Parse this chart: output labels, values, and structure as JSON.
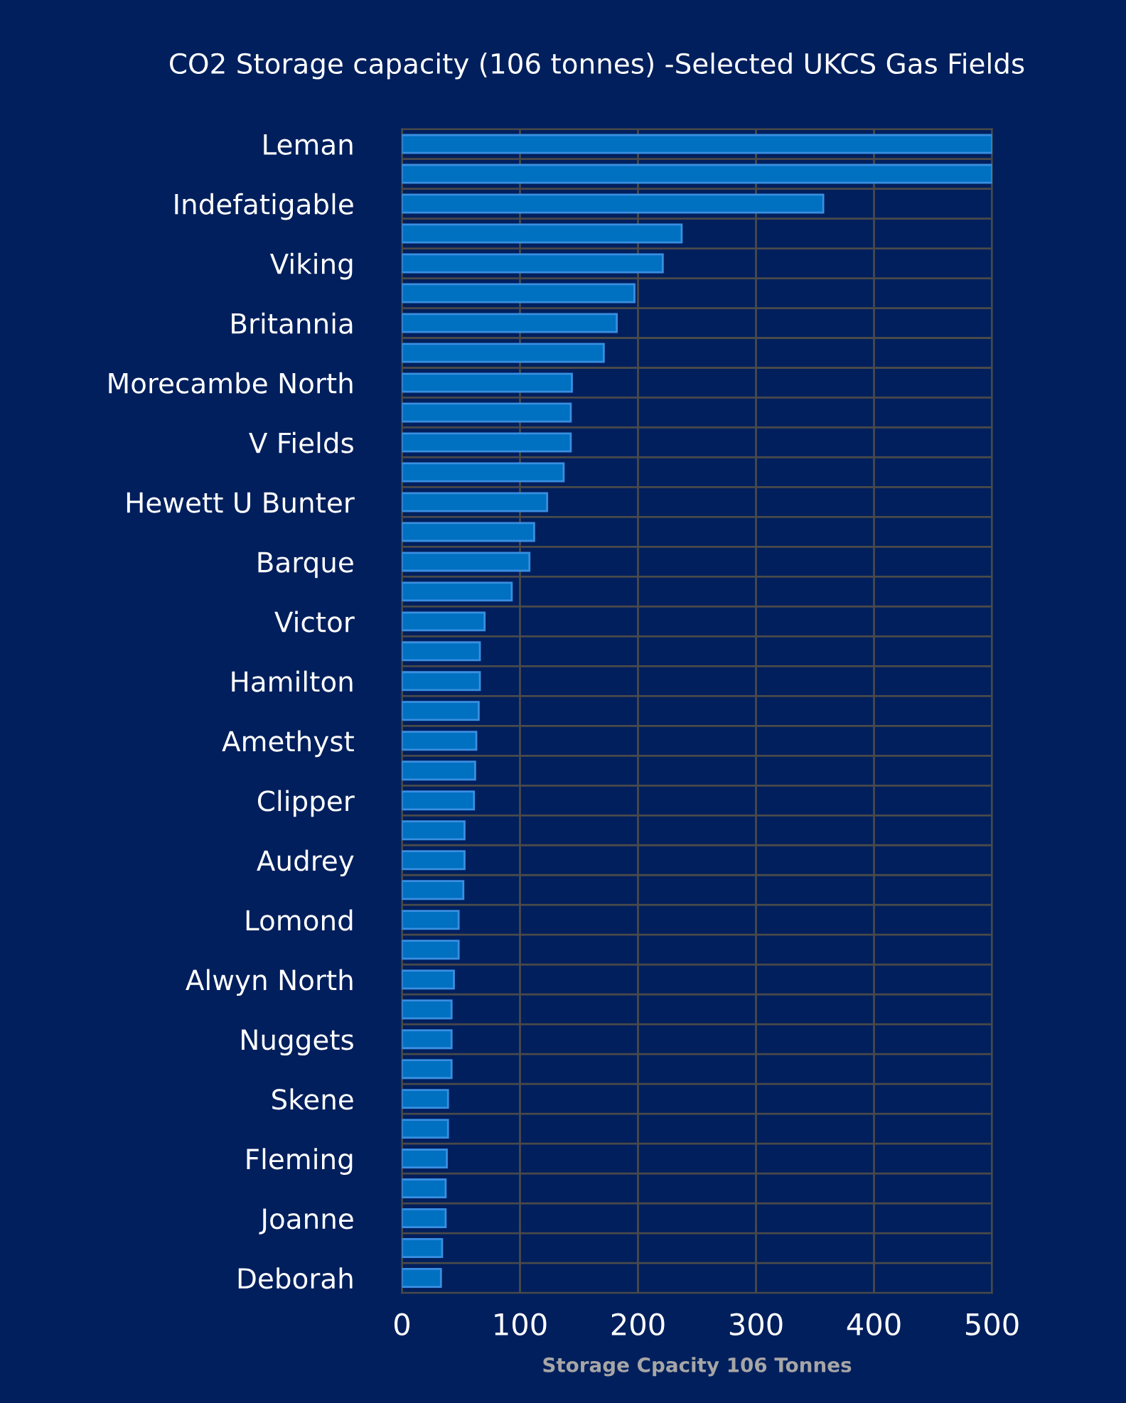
{
  "chart_data": {
    "type": "bar",
    "orientation": "horizontal",
    "title": "CO2 Storage capacity (106 tonnes) -Selected UKCS Gas Fields",
    "xlabel": "Storage Cpacity 106 Tonnes",
    "categories": [
      "Leman",
      null,
      "Indefatigable",
      null,
      "Viking",
      null,
      "Britannia",
      null,
      "Morecambe North",
      null,
      "V Fields",
      null,
      "Hewett U Bunter",
      null,
      "Barque",
      null,
      "Victor",
      null,
      "Hamilton",
      null,
      "Amethyst",
      null,
      "Clipper",
      null,
      "Audrey",
      null,
      "Lomond",
      null,
      "Alwyn North",
      null,
      "Nuggets",
      null,
      "Skene",
      null,
      "Fleming",
      null,
      "Joanne",
      null,
      "Deborah"
    ],
    "values": [
      500,
      500,
      357,
      237,
      221,
      197,
      182,
      171,
      144,
      143,
      143,
      137,
      123,
      112,
      108,
      93,
      70,
      66,
      66,
      65,
      63,
      62,
      61,
      53,
      53,
      52,
      48,
      48,
      44,
      42,
      42,
      42,
      39,
      39,
      38,
      37,
      37,
      34,
      33
    ],
    "color": "#0070c0",
    "xlim": [
      0,
      500
    ],
    "xticks": [
      0,
      100,
      200,
      300,
      400,
      500
    ],
    "grid": true
  }
}
